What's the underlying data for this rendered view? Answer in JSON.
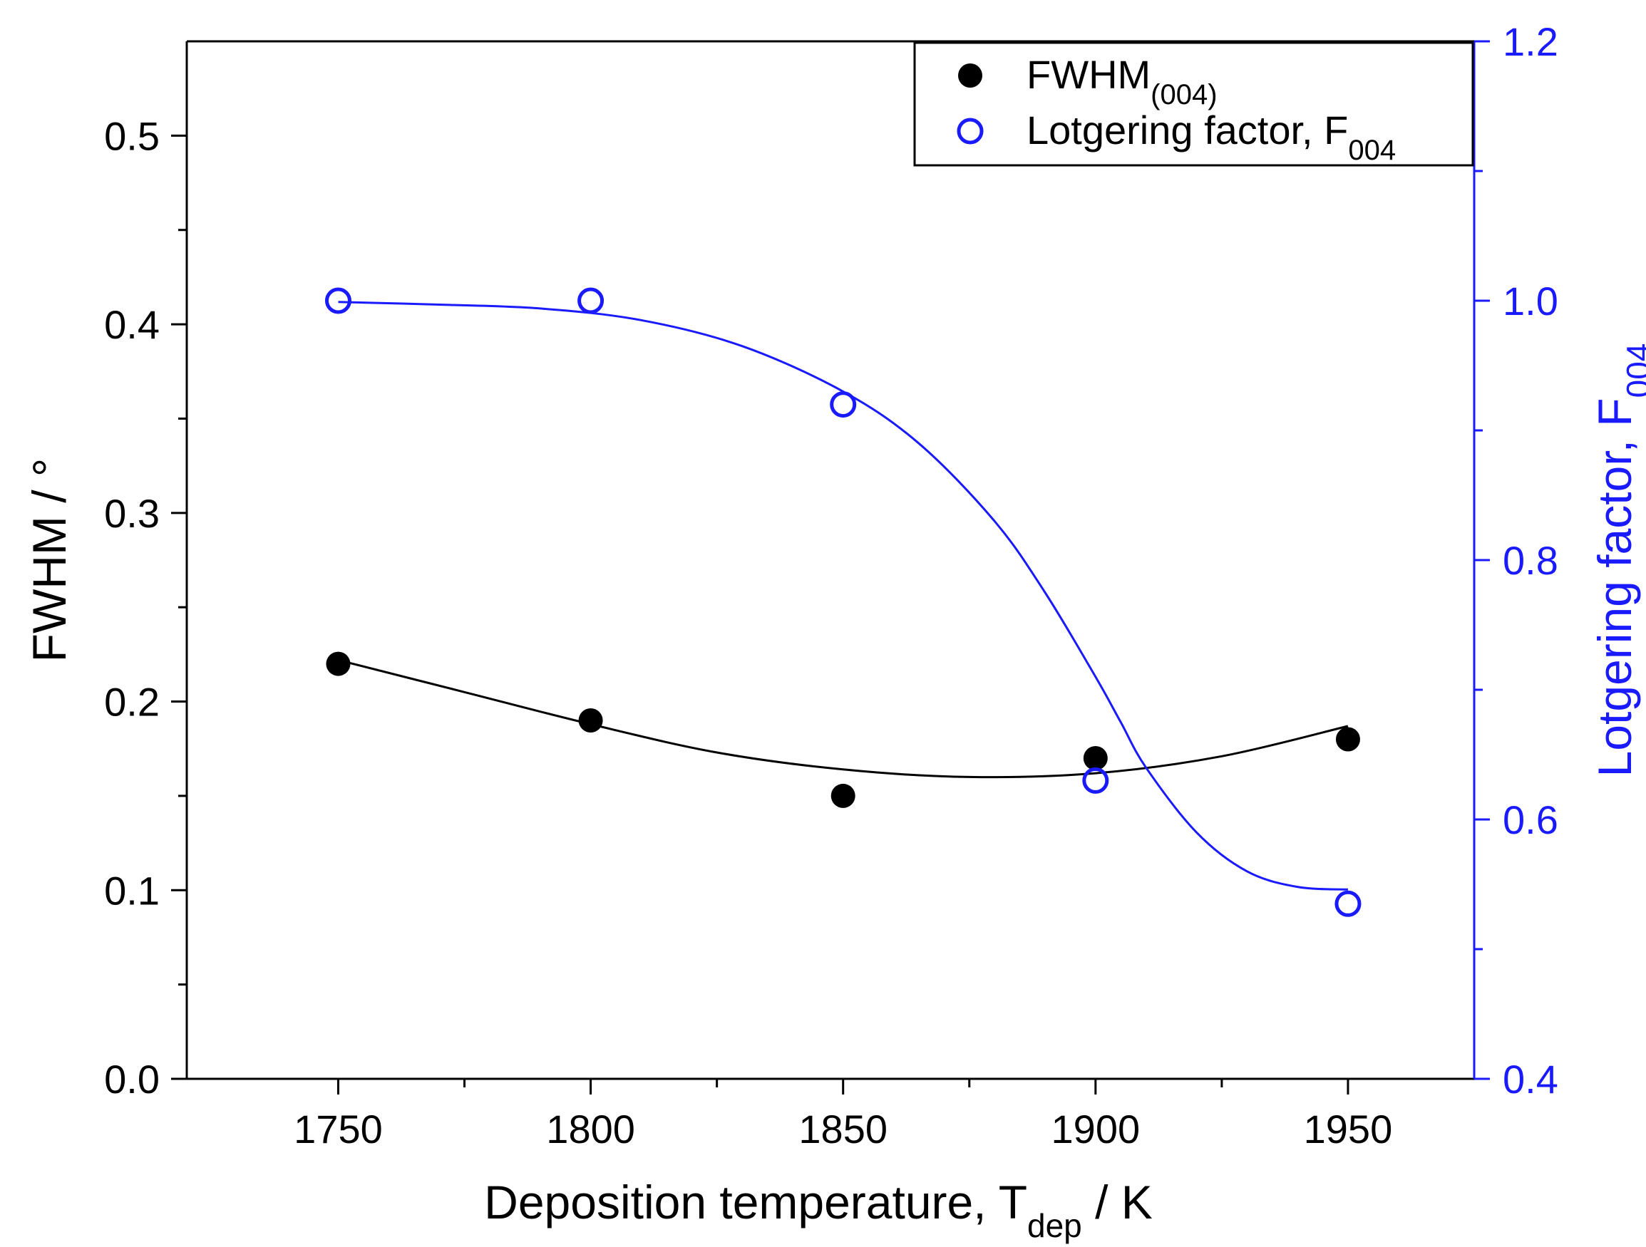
{
  "chart_data": {
    "type": "scatter",
    "title": "",
    "x": [
      1750,
      1800,
      1850,
      1900,
      1950
    ],
    "xlabel": {
      "main": "Deposition temperature, T",
      "sub": "dep",
      "suffix": " / K"
    },
    "xlim": [
      1720,
      1975
    ],
    "xticks": [
      1750,
      1800,
      1850,
      1900,
      1950
    ],
    "xtick_labels": [
      "1750",
      "1800",
      "1850",
      "1900",
      "1950"
    ],
    "xminor": [
      1775,
      1825,
      1875,
      1925
    ],
    "left_axis": {
      "label": "FWHM / °",
      "ylim": [
        0.0,
        0.55
      ],
      "ticks": [
        0.0,
        0.1,
        0.2,
        0.3,
        0.4,
        0.5
      ],
      "tick_labels": [
        "0.0",
        "0.1",
        "0.2",
        "0.3",
        "0.4",
        "0.5"
      ],
      "minor": [
        0.05,
        0.15,
        0.25,
        0.35,
        0.45
      ]
    },
    "right_axis": {
      "label": {
        "main": "Lotgering factor, F",
        "sub": "004"
      },
      "ylim": [
        0.4,
        1.2
      ],
      "ticks": [
        0.4,
        0.6,
        0.8,
        1.0,
        1.2
      ],
      "tick_labels": [
        "0.4",
        "0.6",
        "0.8",
        "1.0",
        "1.2"
      ],
      "minor": [
        0.5,
        0.7,
        0.9,
        1.1
      ],
      "color": "#1a1aff"
    },
    "series": [
      {
        "name": "FWHM(004)",
        "legend": {
          "main": "FWHM",
          "sub": "(004)"
        },
        "axis": "left",
        "marker": "filled-circle",
        "color": "#000000",
        "values": [
          0.22,
          0.19,
          0.15,
          0.17,
          0.18
        ],
        "fit_curve": {
          "x": [
            1750,
            1775,
            1800,
            1825,
            1850,
            1875,
            1900,
            1925,
            1950
          ],
          "y": [
            0.222,
            0.205,
            0.188,
            0.173,
            0.164,
            0.16,
            0.162,
            0.171,
            0.187
          ]
        }
      },
      {
        "name": "Lotgering factor, F004",
        "legend": {
          "main": "Lotgering factor, F",
          "sub": "004"
        },
        "axis": "right",
        "marker": "open-circle",
        "color": "#1a1aff",
        "values": [
          1.0,
          1.0,
          0.92,
          0.63,
          0.535
        ],
        "fit_curve": {
          "x": [
            1750,
            1770,
            1790,
            1810,
            1830,
            1850,
            1865,
            1880,
            1890,
            1900,
            1905,
            1910,
            1920,
            1930,
            1940,
            1950
          ],
          "y": [
            0.999,
            0.997,
            0.994,
            0.985,
            0.965,
            0.93,
            0.89,
            0.83,
            0.775,
            0.71,
            0.675,
            0.64,
            0.59,
            0.56,
            0.548,
            0.546
          ]
        }
      }
    ],
    "legend_position": "top-right"
  }
}
